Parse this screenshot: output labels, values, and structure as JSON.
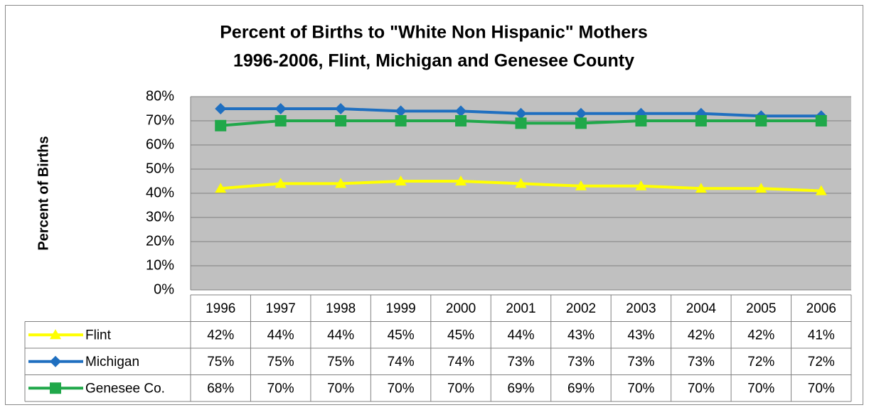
{
  "chart_data": {
    "type": "line",
    "title": [
      "Percent of Births to \"White Non Hispanic\" Mothers",
      "1996-2006, Flint, Michigan and Genesee County"
    ],
    "y_label": "Percent of Births",
    "categories": [
      "1996",
      "1997",
      "1998",
      "1999",
      "2000",
      "2001",
      "2002",
      "2003",
      "2004",
      "2005",
      "2006"
    ],
    "series": [
      {
        "name": "Flint",
        "color": "#ffff00",
        "marker": "triangle",
        "values": [
          42,
          44,
          44,
          45,
          45,
          44,
          43,
          43,
          42,
          42,
          41
        ],
        "value_labels": [
          "42%",
          "44%",
          "44%",
          "45%",
          "45%",
          "44%",
          "43%",
          "43%",
          "42%",
          "42%",
          "41%"
        ]
      },
      {
        "name": "Michigan",
        "color": "#1f6fc0",
        "marker": "diamond",
        "values": [
          75,
          75,
          75,
          74,
          74,
          73,
          73,
          73,
          73,
          72,
          72
        ],
        "value_labels": [
          "75%",
          "75%",
          "75%",
          "74%",
          "74%",
          "73%",
          "73%",
          "73%",
          "73%",
          "72%",
          "72%"
        ]
      },
      {
        "name": "Genesee Co.",
        "color": "#20a84a",
        "marker": "square",
        "values": [
          68,
          70,
          70,
          70,
          70,
          69,
          69,
          70,
          70,
          70,
          70
        ],
        "value_labels": [
          "68%",
          "70%",
          "70%",
          "70%",
          "70%",
          "69%",
          "69%",
          "70%",
          "70%",
          "70%",
          "70%"
        ]
      }
    ],
    "ylim": [
      0,
      80
    ],
    "yticks": [
      {
        "value": 0,
        "label": "0%"
      },
      {
        "value": 10,
        "label": "10%"
      },
      {
        "value": 20,
        "label": "20%"
      },
      {
        "value": 30,
        "label": "30%"
      },
      {
        "value": 40,
        "label": "40%"
      },
      {
        "value": 50,
        "label": "50%"
      },
      {
        "value": 60,
        "label": "60%"
      },
      {
        "value": 70,
        "label": "70%"
      },
      {
        "value": 80,
        "label": "80%"
      }
    ],
    "grid": true,
    "plot_background": "#c0c0c0",
    "data_table": true
  }
}
